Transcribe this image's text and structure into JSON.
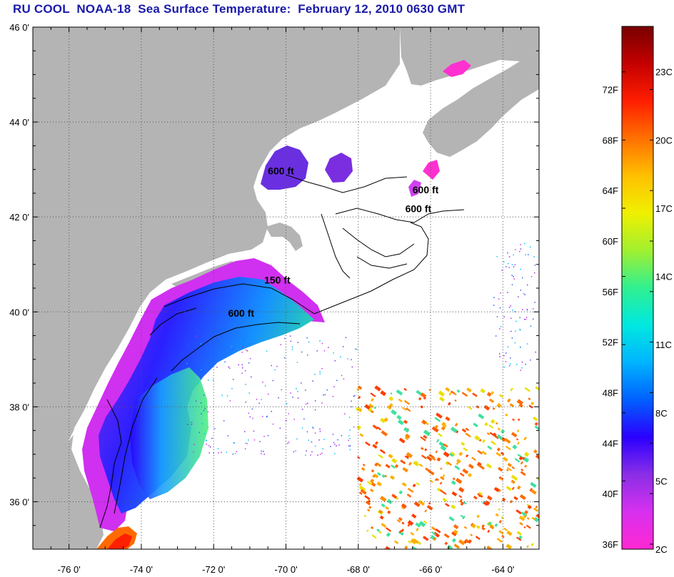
{
  "title": "RU COOL  NOAA-18  Sea Surface Temperature:  February 12, 2010 0630 GMT",
  "map": {
    "lon_range": [
      -77.0,
      -63.0
    ],
    "lat_range": [
      35.0,
      46.0
    ],
    "grid": true,
    "lat_ticks": [
      {
        "value": 46,
        "label": "46 0'"
      },
      {
        "value": 44,
        "label": "44 0'"
      },
      {
        "value": 42,
        "label": "42 0'"
      },
      {
        "value": 40,
        "label": "40 0'"
      },
      {
        "value": 38,
        "label": "38 0'"
      },
      {
        "value": 36,
        "label": "36 0'"
      }
    ],
    "lon_ticks": [
      {
        "value": -76,
        "label": "-76 0'"
      },
      {
        "value": -74,
        "label": "-74 0'"
      },
      {
        "value": -72,
        "label": "-72 0'"
      },
      {
        "value": -70,
        "label": "-70 0'"
      },
      {
        "value": -68,
        "label": "-68 0'"
      },
      {
        "value": -66,
        "label": "-66 0'"
      },
      {
        "value": -64,
        "label": "-64 0'"
      }
    ],
    "contour_labels": [
      {
        "text": "600 ft",
        "lon": -70.5,
        "lat": 42.9
      },
      {
        "text": "600 ft",
        "lon": -66.5,
        "lat": 42.5
      },
      {
        "text": "600 ft",
        "lon": -66.7,
        "lat": 42.1
      },
      {
        "text": "150 ft",
        "lon": -70.6,
        "lat": 40.6
      },
      {
        "text": "600 ft",
        "lon": -71.6,
        "lat": 39.9
      }
    ],
    "colors": {
      "land": "#b4b4b4",
      "ocean": "#ffffff",
      "grid": "#555555"
    }
  },
  "colorbar": {
    "min_c": 2,
    "max_c": 25,
    "celsius_labels": [
      "23C",
      "20C",
      "17C",
      "14C",
      "11C",
      "8C",
      "5C",
      "2C"
    ],
    "fahrenheit_labels": [
      "72F",
      "68F",
      "64F",
      "60F",
      "56F",
      "52F",
      "48F",
      "44F",
      "40F",
      "36F"
    ],
    "stops": [
      "#ff28d2",
      "#d830f0",
      "#8a2ee6",
      "#2b00ff",
      "#0060ff",
      "#00b4ff",
      "#00e8e0",
      "#30f090",
      "#a0f030",
      "#f0f000",
      "#ffc000",
      "#ff7000",
      "#ff1e00",
      "#c40000",
      "#780000"
    ]
  }
}
